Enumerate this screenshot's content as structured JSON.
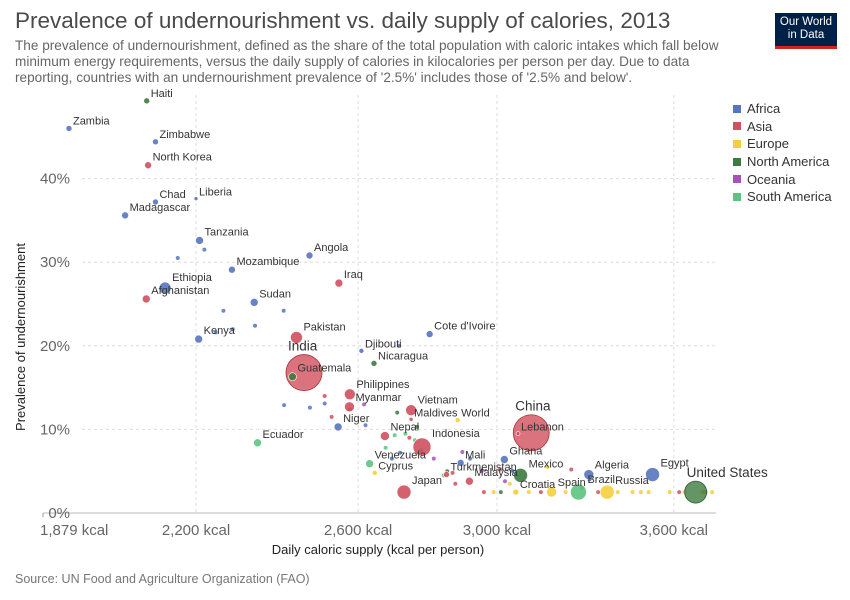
{
  "header": {
    "title": "Prevalence of undernourishment vs. daily supply of calories, 2013",
    "subtitle": "The prevalence of undernourishment, defined as the share of the total population with caloric intakes which fall below minimum energy requirements, versus the daily supply of calories in kilocalories per person per day. Due to data reporting, countries with an undernourishment prevalence of '2.5%' includes those of '2.5% and below'.",
    "logo_line1": "Our World",
    "logo_line2": "in Data"
  },
  "footer": {
    "source": "Source: UN Food and Agriculture Organization (FAO)"
  },
  "colors": {
    "Africa": "#5675c0",
    "Asia": "#d1505e",
    "Europe": "#f4cf3b",
    "North America": "#3d7a3f",
    "Oceania": "#a653b8",
    "South America": "#5dc47f"
  },
  "chart_data": {
    "type": "scatter",
    "title": "Prevalence of undernourishment vs. daily supply of calories, 2013",
    "xlabel": "Daily caloric supply (kcal per person)",
    "ylabel": "Prevalence of undernourishment",
    "x_ticks": [
      1879,
      2200,
      2600,
      3000,
      3600
    ],
    "x_tick_labels": [
      "1,879 kcal",
      "2,200 kcal",
      "2,600 kcal",
      "3,000 kcal",
      "3,600 kcal"
    ],
    "y_ticks": [
      0,
      10,
      20,
      30,
      40
    ],
    "y_tick_labels": [
      "0%",
      "10%",
      "20%",
      "30%",
      "40%"
    ],
    "xlim": [
      1879,
      3760
    ],
    "ylim": [
      0,
      50
    ],
    "x_scale": "log",
    "grid": true,
    "legend_position": "right",
    "legend": [
      "Africa",
      "Asia",
      "Europe",
      "North America",
      "Oceania",
      "South America"
    ],
    "labeled_points": [
      {
        "name": "Haiti",
        "region": "North America",
        "x": 2091,
        "y": 49.3,
        "r": 3
      },
      {
        "name": "Zambia",
        "region": "Africa",
        "x": 1930,
        "y": 46.0,
        "r": 3
      },
      {
        "name": "Zimbabwe",
        "region": "Africa",
        "x": 2110,
        "y": 44.4,
        "r": 3
      },
      {
        "name": "North Korea",
        "region": "Asia",
        "x": 2094,
        "y": 41.6,
        "r": 3.5
      },
      {
        "name": "Chad",
        "region": "Africa",
        "x": 2110,
        "y": 37.2,
        "r": 3
      },
      {
        "name": "Liberia",
        "region": "Africa",
        "x": 2200,
        "y": 37.6,
        "r": 2
      },
      {
        "name": "Madagascar",
        "region": "Africa",
        "x": 2045,
        "y": 35.6,
        "r": 3.5
      },
      {
        "name": "Tanzania",
        "region": "Africa",
        "x": 2208,
        "y": 32.6,
        "r": 4
      },
      {
        "name": "Angola",
        "region": "Africa",
        "x": 2473,
        "y": 30.8,
        "r": 3.5
      },
      {
        "name": "Mozambique",
        "region": "Africa",
        "x": 2283,
        "y": 29.1,
        "r": 3.5
      },
      {
        "name": "Iraq",
        "region": "Asia",
        "x": 2549,
        "y": 27.5,
        "r": 4
      },
      {
        "name": "Ethiopia",
        "region": "Africa",
        "x": 2131,
        "y": 26.9,
        "r": 6
      },
      {
        "name": "Afghanistan",
        "region": "Asia",
        "x": 2090,
        "y": 25.6,
        "r": 4
      },
      {
        "name": "Sudan",
        "region": "Africa",
        "x": 2336,
        "y": 25.2,
        "r": 4
      },
      {
        "name": "Kenya",
        "region": "Africa",
        "x": 2206,
        "y": 20.8,
        "r": 4
      },
      {
        "name": "Pakistan",
        "region": "Asia",
        "x": 2440,
        "y": 21.0,
        "r": 6
      },
      {
        "name": "Cote d'Ivoire",
        "region": "Africa",
        "x": 2799,
        "y": 21.4,
        "r": 3.5
      },
      {
        "name": "Djibouti",
        "region": "Africa",
        "x": 2609,
        "y": 19.4,
        "r": 2.5
      },
      {
        "name": "India",
        "region": "Asia",
        "x": 2459,
        "y": 16.8,
        "r": 18
      },
      {
        "name": "Nicaragua",
        "region": "North America",
        "x": 2643,
        "y": 17.9,
        "r": 3
      },
      {
        "name": "Guatemala",
        "region": "North America",
        "x": 2430,
        "y": 16.3,
        "r": 4
      },
      {
        "name": "Philippines",
        "region": "Asia",
        "x": 2578,
        "y": 14.2,
        "r": 5.5
      },
      {
        "name": "Myanmar",
        "region": "Asia",
        "x": 2577,
        "y": 12.7,
        "r": 5
      },
      {
        "name": "Vietnam",
        "region": "Asia",
        "x": 2746,
        "y": 12.3,
        "r": 5.5
      },
      {
        "name": "Maldives",
        "region": "Asia",
        "x": 2746,
        "y": 11.2,
        "r": 2
      },
      {
        "name": "World",
        "region": "Europe",
        "x": 2881,
        "y": 11.1,
        "r": 2.5
      },
      {
        "name": "Niger",
        "region": "Africa",
        "x": 2547,
        "y": 10.3,
        "r": 4
      },
      {
        "name": "China",
        "region": "Asia",
        "x": 3108,
        "y": 9.6,
        "r": 18
      },
      {
        "name": "Lebanon",
        "region": "Asia",
        "x": 3066,
        "y": 9.5,
        "r": 2
      },
      {
        "name": "Nepal",
        "region": "Asia",
        "x": 2673,
        "y": 9.2,
        "r": 4.5
      },
      {
        "name": "Indonesia",
        "region": "Asia",
        "x": 2777,
        "y": 7.9,
        "r": 9
      },
      {
        "name": "Ecuador",
        "region": "South America",
        "x": 2344,
        "y": 8.4,
        "r": 4
      },
      {
        "name": "Venezuela",
        "region": "South America",
        "x": 2631,
        "y": 5.9,
        "r": 4
      },
      {
        "name": "Mali",
        "region": "Africa",
        "x": 2890,
        "y": 6.0,
        "r": 3.5
      },
      {
        "name": "Ghana",
        "region": "Africa",
        "x": 3023,
        "y": 6.4,
        "r": 4
      },
      {
        "name": "Cyprus",
        "region": "Europe",
        "x": 2645,
        "y": 4.8,
        "r": 2.5
      },
      {
        "name": "Turkmenistan",
        "region": "Asia",
        "x": 2848,
        "y": 4.6,
        "r": 3
      },
      {
        "name": "Mexico",
        "region": "North America",
        "x": 3074,
        "y": 4.5,
        "r": 7
      },
      {
        "name": "Algeria",
        "region": "Africa",
        "x": 3298,
        "y": 4.6,
        "r": 5
      },
      {
        "name": "Egypt",
        "region": "Africa",
        "x": 3522,
        "y": 4.6,
        "r": 7
      },
      {
        "name": "Malaysia",
        "region": "Asia",
        "x": 2916,
        "y": 3.8,
        "r": 4
      },
      {
        "name": "Japan",
        "region": "Asia",
        "x": 2726,
        "y": 2.5,
        "r": 7
      },
      {
        "name": "Croatia",
        "region": "Europe",
        "x": 3059,
        "y": 2.5,
        "r": 3
      },
      {
        "name": "Spain",
        "region": "Europe",
        "x": 3174,
        "y": 2.5,
        "r": 5
      },
      {
        "name": "Brazil",
        "region": "South America",
        "x": 3263,
        "y": 2.5,
        "r": 8
      },
      {
        "name": "Russia",
        "region": "Europe",
        "x": 3361,
        "y": 2.5,
        "r": 7
      },
      {
        "name": "United States",
        "region": "North America",
        "x": 3682,
        "y": 2.5,
        "r": 11
      }
    ],
    "unlabeled_points": [
      {
        "region": "Africa",
        "x": 2159,
        "y": 30.5
      },
      {
        "region": "Africa",
        "x": 2219,
        "y": 31.5
      },
      {
        "region": "Africa",
        "x": 2263,
        "y": 24.2
      },
      {
        "region": "Africa",
        "x": 2285,
        "y": 22.0
      },
      {
        "region": "Africa",
        "x": 2338,
        "y": 22.4
      },
      {
        "region": "Africa",
        "x": 2245,
        "y": 21.6
      },
      {
        "region": "Africa",
        "x": 2408,
        "y": 24.2
      },
      {
        "region": "Africa",
        "x": 2409,
        "y": 12.9
      },
      {
        "region": "Africa",
        "x": 2474,
        "y": 12.6
      },
      {
        "region": "Africa",
        "x": 2512,
        "y": 13.1
      },
      {
        "region": "Africa",
        "x": 2692,
        "y": 6.5
      },
      {
        "region": "Africa",
        "x": 2715,
        "y": 7.2
      },
      {
        "region": "Africa",
        "x": 2620,
        "y": 10.5
      },
      {
        "region": "Africa",
        "x": 2712,
        "y": 20.0
      },
      {
        "region": "Africa",
        "x": 2775,
        "y": 7.5
      },
      {
        "region": "Africa",
        "x": 2918,
        "y": 6.5
      },
      {
        "region": "Africa",
        "x": 3050,
        "y": 5.0
      },
      {
        "region": "Africa",
        "x": 3300,
        "y": 4.0
      },
      {
        "region": "Asia",
        "x": 2512,
        "y": 14.0
      },
      {
        "region": "Asia",
        "x": 2530,
        "y": 11.5
      },
      {
        "region": "Asia",
        "x": 2741,
        "y": 9.0
      },
      {
        "region": "Asia",
        "x": 2866,
        "y": 4.8
      },
      {
        "region": "Asia",
        "x": 2874,
        "y": 3.5
      },
      {
        "region": "Asia",
        "x": 3010,
        "y": 5.2
      },
      {
        "region": "Asia",
        "x": 3239,
        "y": 5.2
      },
      {
        "region": "Asia",
        "x": 3330,
        "y": 2.5
      },
      {
        "region": "Asia",
        "x": 3620,
        "y": 2.5
      },
      {
        "region": "Asia",
        "x": 3712,
        "y": 2.5
      },
      {
        "region": "Asia",
        "x": 3139,
        "y": 2.5
      },
      {
        "region": "Asia",
        "x": 2960,
        "y": 2.5
      },
      {
        "region": "Europe",
        "x": 2990,
        "y": 2.5
      },
      {
        "region": "Europe",
        "x": 3100,
        "y": 2.5
      },
      {
        "region": "Europe",
        "x": 3220,
        "y": 2.5
      },
      {
        "region": "Europe",
        "x": 3398,
        "y": 2.5
      },
      {
        "region": "Europe",
        "x": 3450,
        "y": 2.5
      },
      {
        "region": "Europe",
        "x": 3480,
        "y": 2.5
      },
      {
        "region": "Europe",
        "x": 3508,
        "y": 2.5
      },
      {
        "region": "Europe",
        "x": 3585,
        "y": 2.5
      },
      {
        "region": "Europe",
        "x": 3640,
        "y": 2.5
      },
      {
        "region": "Europe",
        "x": 3705,
        "y": 2.5
      },
      {
        "region": "Europe",
        "x": 3722,
        "y": 2.5
      },
      {
        "region": "Europe",
        "x": 3745,
        "y": 2.5
      },
      {
        "region": "Europe",
        "x": 3040,
        "y": 3.5
      },
      {
        "region": "Europe",
        "x": 3160,
        "y": 5.5
      },
      {
        "region": "North America",
        "x": 2578,
        "y": 12.4
      },
      {
        "region": "North America",
        "x": 2707,
        "y": 12.0
      },
      {
        "region": "North America",
        "x": 2763,
        "y": 10.3
      },
      {
        "region": "North America",
        "x": 2850,
        "y": 5.0
      },
      {
        "region": "North America",
        "x": 3012,
        "y": 2.5
      },
      {
        "region": "North America",
        "x": 3275,
        "y": 3.0
      },
      {
        "region": "Oceania",
        "x": 2811,
        "y": 6.5
      },
      {
        "region": "Oceania",
        "x": 2895,
        "y": 7.3
      },
      {
        "region": "Oceania",
        "x": 2953,
        "y": 5.0
      },
      {
        "region": "Oceania",
        "x": 3025,
        "y": 3.8
      },
      {
        "region": "Oceania",
        "x": 2616,
        "y": 13.0
      },
      {
        "region": "South America",
        "x": 2700,
        "y": 9.3
      },
      {
        "region": "South America",
        "x": 2730,
        "y": 9.5
      },
      {
        "region": "South America",
        "x": 2757,
        "y": 8.7
      },
      {
        "region": "South America",
        "x": 2840,
        "y": 4.5
      },
      {
        "region": "South America",
        "x": 2675,
        "y": 7.8
      }
    ]
  }
}
